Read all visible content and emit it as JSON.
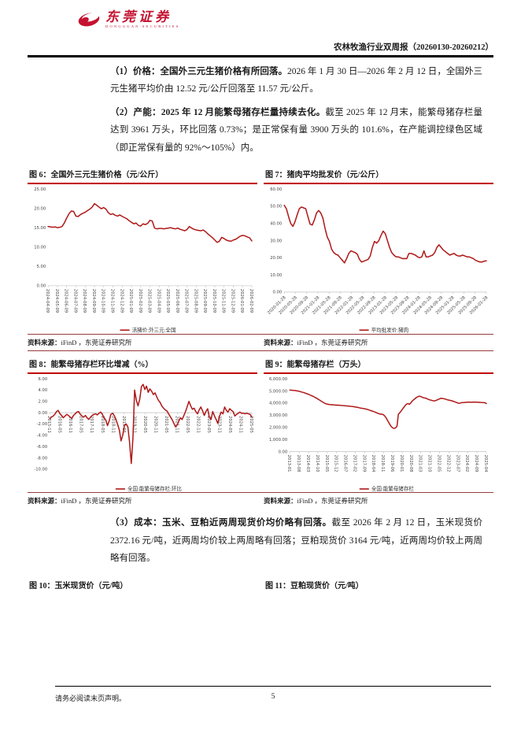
{
  "header": {
    "brand_cn": "东莞证券",
    "brand_en": "DONGGUAN SECURITIES",
    "report_title": "农林牧渔行业双周报（20260130-20260212）"
  },
  "paragraphs": [
    {
      "bold": "（1）价格：全国外三元生猪价格有所回落。",
      "text": "2026 年 1 月 30 日—2026 年 2 月 12 日，全国外三元生猪平均价由 12.52 元/公斤回落至 11.57 元/公斤。"
    },
    {
      "bold": "（2）产能：2025 年 12 月能繁母猪存栏量持续去化。",
      "text": "截至 2025 年 12 月末，能繁母猪存栏量达到 3961 万头，环比回落 0.73%；是正常保有量 3900 万头的 101.6%，在产能调控绿色区域（即正常保有量的 92%～105%）内。"
    },
    {
      "bold": "（3）成本：玉米、豆粕近两周现货价均价略有回落。",
      "text": "截至 2026 年 2 月 12 日，玉米现货价 2372.16 元/吨，近两周均价较上两周略有回落；豆粕现货价 3164 元/吨，近两周均价较上两周略有回落。"
    }
  ],
  "source": {
    "label": "资料来源：",
    "text": "iFinD ，东莞证券研究所"
  },
  "figure_titles": {
    "fig10": "图 10：玉米现货价（元/吨）",
    "fig11": "图 11：豆粕现货价（元/吨）"
  },
  "footer": {
    "disclaimer": "请务必阅读末页声明。",
    "page_number": "5"
  },
  "colors": {
    "series_line": "#b01818",
    "title_underline": "#c00000",
    "brand_red": "#c41230"
  },
  "chart_data": [
    {
      "id": "fig6",
      "type": "line",
      "title": "图 6：全国外三元生猪价格（元/公斤）",
      "legend": "活猪价:外三元:全国",
      "color": "#b01818",
      "ylim": [
        0,
        25
      ],
      "yticks": [
        "25.00",
        "20.00",
        "15.00",
        "10.00",
        "5.00",
        "0.00"
      ],
      "xlabels": [
        "2024-04-09",
        "2024-05-09",
        "2024-06-09",
        "2024-07-09",
        "2024-08-09",
        "2024-09-09",
        "2024-10-09",
        "2024-11-09",
        "2024-12-09",
        "2025-01-09",
        "2025-02-09",
        "2025-03-09",
        "2025-04-09",
        "2025-05-09",
        "2025-06-09",
        "2025-07-09",
        "2025-08-09",
        "2025-09-09",
        "2025-10-09",
        "2025-11-09",
        "2025-12-09",
        "2026-01-09",
        "2026-02-09"
      ],
      "values": [
        15.3,
        15.2,
        15.1,
        15.2,
        15.0,
        15.1,
        15.3,
        16.2,
        17.5,
        18.6,
        19.3,
        19.2,
        18.0,
        17.9,
        18.4,
        18.7,
        19.0,
        19.4,
        19.8,
        20.3,
        21.2,
        20.8,
        20.3,
        19.9,
        20.2,
        19.8,
        18.9,
        18.4,
        18.6,
        18.2,
        18.0,
        18.3,
        17.9,
        17.6,
        17.3,
        16.8,
        16.4,
        16.0,
        16.2,
        15.6,
        15.4,
        16.0,
        15.8,
        16.1,
        16.9,
        16.7,
        14.9,
        14.7,
        14.8,
        14.8,
        14.7,
        14.8,
        14.9,
        15.0,
        14.8,
        14.7,
        14.9,
        14.6,
        14.4,
        14.2,
        14.5,
        15.3,
        14.9,
        14.6,
        14.4,
        14.3,
        14.2,
        14.4,
        14.0,
        13.4,
        12.9,
        12.4,
        11.8,
        11.2,
        11.5,
        12.5,
        12.2,
        11.8,
        11.6,
        11.5,
        11.8,
        12.0,
        12.4,
        12.8,
        13.0,
        12.9,
        12.6,
        12.4,
        11.57
      ]
    },
    {
      "id": "fig7",
      "type": "line",
      "title": "图 7：猪肉平均批发价（元/公斤）",
      "legend": "平均批发价:猪肉",
      "color": "#b01818",
      "ylim": [
        0,
        60
      ],
      "yticks": [
        "60.00",
        "50.00",
        "40.00",
        "30.00",
        "20.00",
        "10.00",
        "0.00"
      ],
      "xlabels": [
        "2020-01-28",
        "2020-05-28",
        "2020-09-28",
        "2021-01-28",
        "2021-05-28",
        "2021-09-28",
        "2022-01-28",
        "2022-05-28",
        "2022-09-28",
        "2023-01-28",
        "2023-05-28",
        "2023-09-28",
        "2024-01-28",
        "2024-05-28",
        "2024-09-28",
        "2025-01-28",
        "2025-05-28",
        "2025-09-28",
        "2026-01-28"
      ],
      "values": [
        50.5,
        48.5,
        44,
        40,
        38.2,
        41,
        45,
        48.5,
        49.5,
        49,
        48.5,
        44,
        39.5,
        39,
        42,
        46,
        47.5,
        46,
        43,
        37,
        32,
        29.5,
        25,
        23,
        22,
        21.5,
        20,
        18.5,
        17,
        19.5,
        22.5,
        24,
        23.5,
        23,
        22,
        19,
        17.5,
        18,
        18.5,
        19,
        21,
        26,
        29.5,
        28.5,
        30,
        33,
        35.5,
        34,
        30,
        26,
        23,
        21.5,
        20.5,
        20.5,
        20,
        19.5,
        19.5,
        19.5,
        22.5,
        22.5,
        22,
        21.5,
        20.5,
        20,
        20.5,
        24,
        20.5,
        20.5,
        21,
        21.5,
        23,
        26,
        27.5,
        26,
        24.5,
        23.5,
        22.5,
        21.5,
        22,
        22.5,
        21.5,
        21,
        21,
        21.5,
        21,
        20.5,
        20.5,
        20,
        19.5,
        18.5,
        18,
        17.5,
        17.5,
        18,
        18.2
      ]
    },
    {
      "id": "fig8",
      "type": "line",
      "title": "图 8：能繁母猪存栏环比增减（%）",
      "legend": "全国:能繁母猪存栏:环比",
      "color": "#b01818",
      "ylim": [
        -10,
        6
      ],
      "yticks": [
        "6.00",
        "4.00",
        "2.00",
        "0.00",
        "-2.00",
        "-4.00",
        "-6.00",
        "-8.00",
        "-10.00"
      ],
      "xlabels": [
        "2015-11",
        "2016-05",
        "2016-11",
        "2017-05",
        "2017-11",
        "2018-05",
        "2018-11",
        "2019-05",
        "2019-11",
        "2020-05",
        "2020-11",
        "2021-05",
        "2021-11",
        "2022-05",
        "2022-11",
        "2023-05",
        "2023-11",
        "2024-05",
        "2024-11",
        "2025-05"
      ],
      "values": [
        -1.1,
        -0.8,
        -0.6,
        -0.3,
        0.2,
        0.4,
        -0.2,
        -0.5,
        -0.9,
        -0.6,
        -0.3,
        -0.5,
        -0.8,
        -1.0,
        -0.5,
        -0.2,
        0.1,
        0.2,
        -0.3,
        -0.6,
        -0.8,
        -0.5,
        -0.9,
        -1.2,
        -0.8,
        -0.5,
        -0.3,
        -0.2,
        -0.4,
        -0.1,
        0.1,
        -0.3,
        -0.9,
        -1.3,
        -2.3,
        -1.5,
        -0.3,
        -0.1,
        -0.5,
        -1.2,
        -2.1,
        -3.1,
        -5.0,
        -4.0,
        -2.2,
        -2.0,
        -2.5,
        -5.2,
        -9.0,
        -4.5,
        4.0,
        2.2,
        1.2,
        2.4,
        4.6,
        5.0,
        4.1,
        4.7,
        3.6,
        4.2,
        3.8,
        3.2,
        3.5,
        2.8,
        2.2,
        1.8,
        1.2,
        0.8,
        0.5,
        0.3,
        -0.2,
        -0.7,
        -1.2,
        -1.8,
        -2.5,
        -2.2,
        -1.5,
        -0.9,
        -1.2,
        -0.5,
        0.2,
        1.1,
        2.0,
        1.2,
        0.6,
        0.8,
        0.2,
        -0.2,
        0.5,
        1.0,
        0.3,
        -0.5,
        0.2,
        0.7,
        -0.8,
        -1.2,
        0.2,
        -0.6,
        -1.2,
        -1.9,
        -0.6,
        0.1,
        -0.2,
        1.0,
        0.4,
        0.1,
        0.7,
        0.4,
        0.2,
        -0.6,
        -0.3,
        -0.1,
        0.1,
        -0.1,
        -0.1,
        -0.2,
        -0.1,
        -0.2,
        -0.3,
        -0.73
      ]
    },
    {
      "id": "fig9",
      "type": "line",
      "title": "图 9：能繁母猪存栏（万头）",
      "legend": "全国:能繁母猪存栏",
      "color": "#b01818",
      "ylim": [
        0,
        6000
      ],
      "yticks": [
        "6,000.00",
        "5,000.00",
        "4,000.00",
        "3,000.00",
        "2,000.00",
        "1,000.00",
        "0.00"
      ],
      "xlabels": [
        "2013-01",
        "2013-08",
        "2014-03",
        "2014-10",
        "2015-05",
        "2015-12",
        "2016-07",
        "2017-02",
        "2017-09",
        "2018-04",
        "2018-11",
        "2019-06",
        "2020-01",
        "2020-08",
        "2021-03",
        "2021-10",
        "2022-05",
        "2022-12",
        "2023-07",
        "2024-02",
        "2024-09",
        "2025-04"
      ],
      "values": [
        5068,
        5060,
        5050,
        5040,
        5030,
        5010,
        4990,
        4960,
        4930,
        4900,
        4870,
        4830,
        4790,
        4750,
        4700,
        4650,
        4600,
        4550,
        4490,
        4430,
        4360,
        4290,
        4220,
        4150,
        4080,
        4010,
        3950,
        3920,
        3900,
        3880,
        3870,
        3860,
        3850,
        3840,
        3830,
        3830,
        3820,
        3810,
        3800,
        3790,
        3780,
        3770,
        3760,
        3750,
        3740,
        3730,
        3710,
        3690,
        3670,
        3650,
        3630,
        3600,
        3580,
        3560,
        3540,
        3520,
        3490,
        3460,
        3420,
        3380,
        3340,
        3300,
        3260,
        3210,
        3160,
        3120,
        3100,
        3080,
        3050,
        2950,
        2800,
        2600,
        2400,
        2200,
        2050,
        1950,
        1920,
        1960,
        2100,
        3080,
        3200,
        3350,
        3500,
        3650,
        3800,
        3920,
        3960,
        3900,
        4000,
        4160,
        4260,
        4350,
        4450,
        4520,
        4560,
        4550,
        4500,
        4450,
        4420,
        4400,
        4350,
        4300,
        4260,
        4230,
        4200,
        4180,
        4200,
        4250,
        4300,
        4350,
        4390,
        4380,
        4360,
        4340,
        4300,
        4260,
        4240,
        4210,
        4180,
        4150,
        4100,
        4060,
        4010,
        3986,
        4000,
        4040,
        4042,
        4050,
        4060,
        4070,
        4080,
        4075,
        4070,
        4080,
        4078,
        4080,
        4075,
        4070,
        4060,
        4050,
        4042,
        4040,
        4039,
        3961
      ]
    }
  ]
}
